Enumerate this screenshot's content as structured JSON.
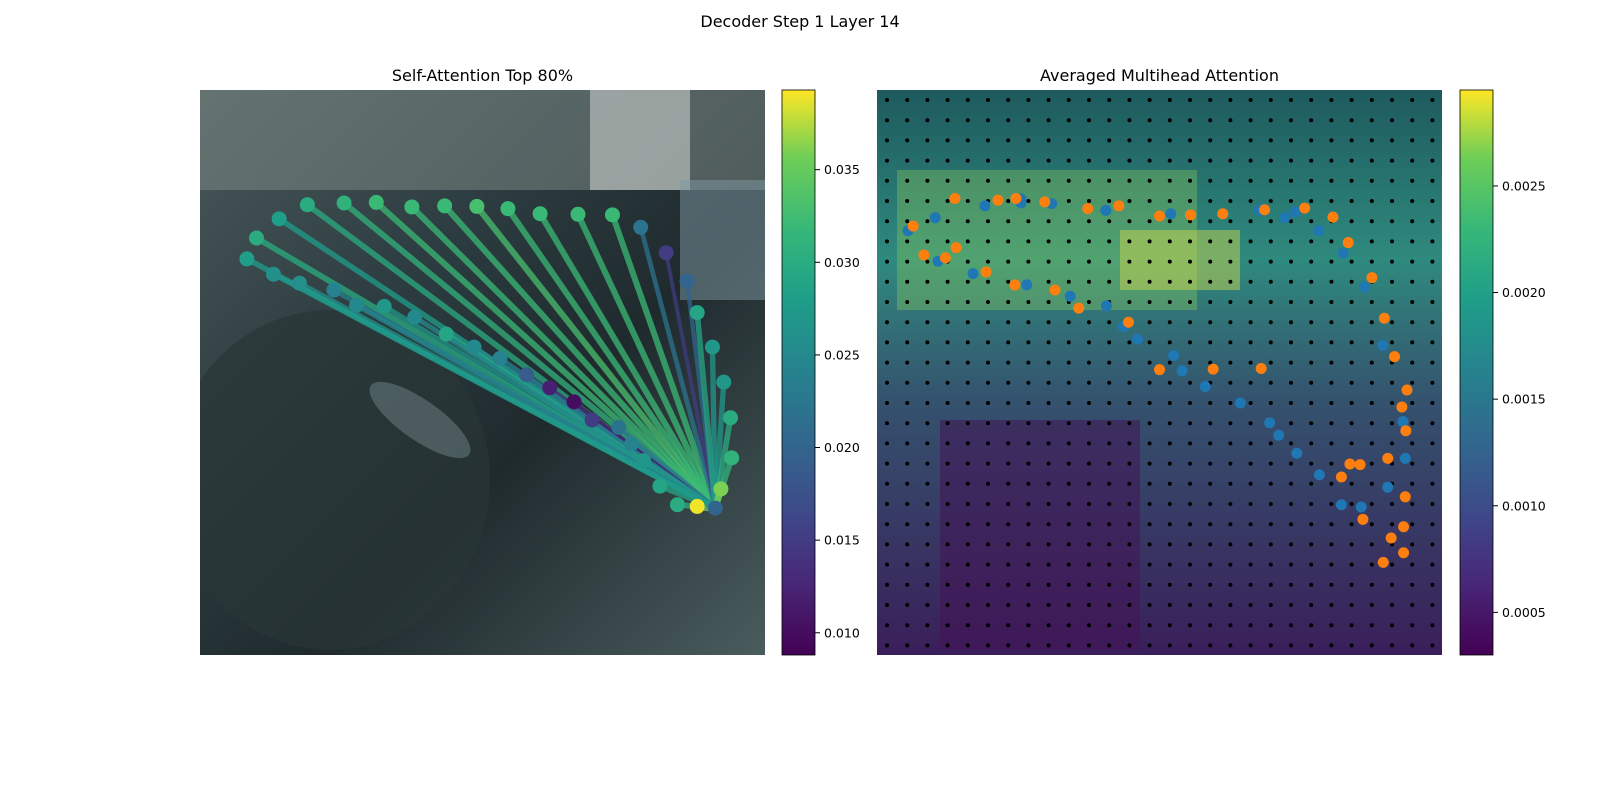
{
  "figure": {
    "suptitle": "Decoder Step 1 Layer 14"
  },
  "chart_data": [
    {
      "type": "scatter",
      "title": "Self-Attention Top 80%",
      "xlabel": "",
      "ylabel": "",
      "colormap": "viridis",
      "colorbar": {
        "range": [
          0.0088,
          0.0393
        ],
        "ticks": [
          "0.010",
          "0.015",
          "0.020",
          "0.025",
          "0.030",
          "0.035"
        ]
      },
      "source_point": {
        "x": 0.912,
        "y": 0.74,
        "value": 0.02
      },
      "points": [
        {
          "x": 0.1,
          "y": 0.262,
          "v": 0.03
        },
        {
          "x": 0.14,
          "y": 0.228,
          "v": 0.028
        },
        {
          "x": 0.19,
          "y": 0.203,
          "v": 0.03
        },
        {
          "x": 0.255,
          "y": 0.2,
          "v": 0.031
        },
        {
          "x": 0.312,
          "y": 0.199,
          "v": 0.032
        },
        {
          "x": 0.375,
          "y": 0.207,
          "v": 0.032
        },
        {
          "x": 0.433,
          "y": 0.205,
          "v": 0.032
        },
        {
          "x": 0.49,
          "y": 0.206,
          "v": 0.033
        },
        {
          "x": 0.545,
          "y": 0.21,
          "v": 0.032
        },
        {
          "x": 0.602,
          "y": 0.219,
          "v": 0.032
        },
        {
          "x": 0.669,
          "y": 0.22,
          "v": 0.032
        },
        {
          "x": 0.73,
          "y": 0.221,
          "v": 0.032
        },
        {
          "x": 0.78,
          "y": 0.243,
          "v": 0.022
        },
        {
          "x": 0.825,
          "y": 0.288,
          "v": 0.015
        },
        {
          "x": 0.862,
          "y": 0.338,
          "v": 0.02
        },
        {
          "x": 0.88,
          "y": 0.394,
          "v": 0.029
        },
        {
          "x": 0.907,
          "y": 0.455,
          "v": 0.027
        },
        {
          "x": 0.927,
          "y": 0.517,
          "v": 0.027
        },
        {
          "x": 0.939,
          "y": 0.58,
          "v": 0.03
        },
        {
          "x": 0.941,
          "y": 0.651,
          "v": 0.031
        },
        {
          "x": 0.922,
          "y": 0.706,
          "v": 0.036
        },
        {
          "x": 0.88,
          "y": 0.737,
          "v": 0.039
        },
        {
          "x": 0.845,
          "y": 0.734,
          "v": 0.03
        },
        {
          "x": 0.814,
          "y": 0.701,
          "v": 0.029
        },
        {
          "x": 0.785,
          "y": 0.656,
          "v": 0.027
        },
        {
          "x": 0.764,
          "y": 0.626,
          "v": 0.024
        },
        {
          "x": 0.741,
          "y": 0.597,
          "v": 0.022
        },
        {
          "x": 0.694,
          "y": 0.584,
          "v": 0.015
        },
        {
          "x": 0.662,
          "y": 0.552,
          "v": 0.01
        },
        {
          "x": 0.619,
          "y": 0.527,
          "v": 0.012
        },
        {
          "x": 0.578,
          "y": 0.504,
          "v": 0.019
        },
        {
          "x": 0.531,
          "y": 0.475,
          "v": 0.024
        },
        {
          "x": 0.485,
          "y": 0.455,
          "v": 0.025
        },
        {
          "x": 0.436,
          "y": 0.432,
          "v": 0.029
        },
        {
          "x": 0.38,
          "y": 0.402,
          "v": 0.025
        },
        {
          "x": 0.326,
          "y": 0.383,
          "v": 0.027
        },
        {
          "x": 0.277,
          "y": 0.381,
          "v": 0.025
        },
        {
          "x": 0.237,
          "y": 0.354,
          "v": 0.024
        },
        {
          "x": 0.176,
          "y": 0.342,
          "v": 0.026
        },
        {
          "x": 0.13,
          "y": 0.326,
          "v": 0.026
        },
        {
          "x": 0.083,
          "y": 0.299,
          "v": 0.028
        }
      ]
    },
    {
      "type": "heatmap",
      "title": "Averaged Multihead Attention",
      "xlabel": "",
      "ylabel": "",
      "colormap": "viridis",
      "grid": "28 x 28 black reference dots",
      "colorbar": {
        "range": [
          0.0003,
          0.00295
        ],
        "ticks": [
          "0.0005",
          "0.0010",
          "0.0015",
          "0.0020",
          "0.0025"
        ]
      },
      "series": [
        {
          "name": "",
          "color": "#1f77b4",
          "points": [
            [
              0.055,
              0.249
            ],
            [
              0.103,
              0.226
            ],
            [
              0.191,
              0.205
            ],
            [
              0.255,
              0.2
            ],
            [
              0.309,
              0.201
            ],
            [
              0.677,
              0.213
            ],
            [
              0.722,
              0.226
            ],
            [
              0.108,
              0.303
            ],
            [
              0.17,
              0.325
            ],
            [
              0.265,
              0.345
            ],
            [
              0.342,
              0.365
            ],
            [
              0.406,
              0.382
            ],
            [
              0.436,
              0.419
            ],
            [
              0.461,
              0.441
            ],
            [
              0.525,
              0.47
            ],
            [
              0.54,
              0.497
            ],
            [
              0.581,
              0.525
            ],
            [
              0.643,
              0.554
            ],
            [
              0.695,
              0.589
            ],
            [
              0.711,
              0.611
            ],
            [
              0.743,
              0.643
            ],
            [
              0.783,
              0.681
            ],
            [
              0.822,
              0.734
            ],
            [
              0.857,
              0.738
            ],
            [
              0.904,
              0.703
            ],
            [
              0.935,
              0.652
            ],
            [
              0.931,
              0.587
            ],
            [
              0.895,
              0.452
            ],
            [
              0.863,
              0.349
            ],
            [
              0.825,
              0.289
            ],
            [
              0.782,
              0.249
            ],
            [
              0.74,
              0.216
            ],
            [
              0.68,
              0.211
            ],
            [
              0.52,
              0.219
            ],
            [
              0.405,
              0.213
            ],
            [
              0.255,
              0.193
            ]
          ]
        },
        {
          "name": "",
          "color": "#ff7f0e",
          "points": [
            [
              0.064,
              0.241
            ],
            [
              0.083,
              0.292
            ],
            [
              0.138,
              0.192
            ],
            [
              0.14,
              0.279
            ],
            [
              0.214,
              0.195
            ],
            [
              0.246,
              0.192
            ],
            [
              0.297,
              0.198
            ],
            [
              0.373,
              0.21
            ],
            [
              0.428,
              0.205
            ],
            [
              0.5,
              0.223
            ],
            [
              0.555,
              0.221
            ],
            [
              0.612,
              0.219
            ],
            [
              0.686,
              0.212
            ],
            [
              0.757,
              0.209
            ],
            [
              0.807,
              0.225
            ],
            [
              0.834,
              0.27
            ],
            [
              0.876,
              0.332
            ],
            [
              0.898,
              0.404
            ],
            [
              0.916,
              0.472
            ],
            [
              0.938,
              0.531
            ],
            [
              0.929,
              0.561
            ],
            [
              0.936,
              0.603
            ],
            [
              0.855,
              0.663
            ],
            [
              0.837,
              0.662
            ],
            [
              0.822,
              0.685
            ],
            [
              0.86,
              0.76
            ],
            [
              0.91,
              0.793
            ],
            [
              0.932,
              0.819
            ],
            [
              0.896,
              0.836
            ],
            [
              0.932,
              0.773
            ],
            [
              0.935,
              0.72
            ],
            [
              0.904,
              0.652
            ],
            [
              0.68,
              0.493
            ],
            [
              0.595,
              0.494
            ],
            [
              0.5,
              0.495
            ],
            [
              0.445,
              0.411
            ],
            [
              0.357,
              0.386
            ],
            [
              0.315,
              0.354
            ],
            [
              0.244,
              0.345
            ],
            [
              0.193,
              0.322
            ],
            [
              0.121,
              0.297
            ]
          ]
        }
      ]
    }
  ],
  "colors": {
    "cmap_low": "#440154",
    "cmap_high": "#fde725",
    "blue": "#1f77b4",
    "orange": "#ff7f0e"
  }
}
